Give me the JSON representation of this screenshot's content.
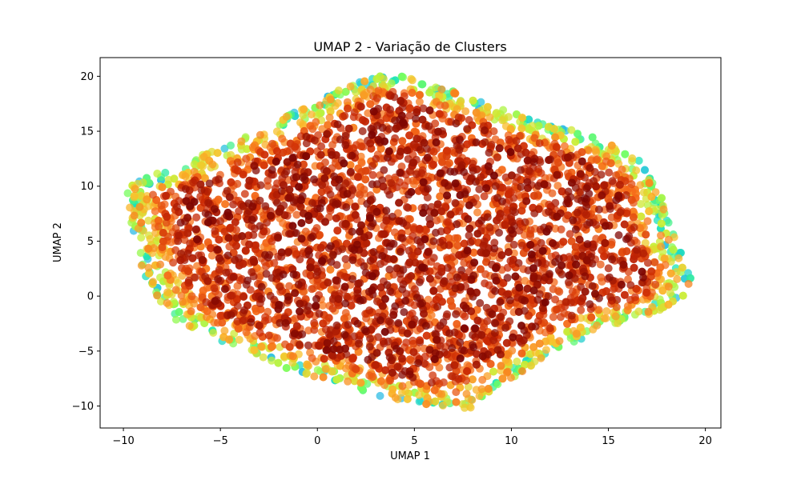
{
  "chart_data": {
    "type": "scatter",
    "title": "UMAP 2 - Variação de Clusters",
    "xlabel": "UMAP 1",
    "ylabel": "UMAP 2",
    "xlim": [
      -11.2,
      20.8
    ],
    "ylim": [
      -12.0,
      21.7
    ],
    "xticks": [
      -10,
      -5,
      0,
      5,
      10,
      15,
      20
    ],
    "yticks": [
      -10,
      -5,
      0,
      5,
      10,
      15,
      20
    ],
    "xtick_labels": [
      "−10",
      "−5",
      "0",
      "5",
      "10",
      "15",
      "20"
    ],
    "ytick_labels": [
      "−10",
      "−5",
      "0",
      "5",
      "10",
      "15",
      "20"
    ],
    "grid": false,
    "legend": "none",
    "colormap": "turbo",
    "colormap_stops": [
      "#30123b",
      "#4662d7",
      "#36aaf9",
      "#1ae4b6",
      "#72fe5e",
      "#c7ef34",
      "#fabf2c",
      "#f66b19",
      "#cb2a04",
      "#7a0403"
    ],
    "point_alpha": 0.75,
    "hull": [
      [
        -10.0,
        9.8
      ],
      [
        -7.5,
        11.8
      ],
      [
        -5.0,
        13.5
      ],
      [
        -2.0,
        16.0
      ],
      [
        0.0,
        17.8
      ],
      [
        2.0,
        19.5
      ],
      [
        3.8,
        20.3
      ],
      [
        5.5,
        19.6
      ],
      [
        8.0,
        18.0
      ],
      [
        10.5,
        16.4
      ],
      [
        13.0,
        15.2
      ],
      [
        15.0,
        14.0
      ],
      [
        16.5,
        12.5
      ],
      [
        17.6,
        10.5
      ],
      [
        18.0,
        7.5
      ],
      [
        18.6,
        4.5
      ],
      [
        19.3,
        2.0
      ],
      [
        19.0,
        0.0
      ],
      [
        17.5,
        -1.5
      ],
      [
        15.5,
        -2.5
      ],
      [
        13.5,
        -4.0
      ],
      [
        11.5,
        -6.0
      ],
      [
        9.5,
        -8.0
      ],
      [
        7.8,
        -10.3
      ],
      [
        5.5,
        -9.8
      ],
      [
        3.5,
        -9.3
      ],
      [
        1.0,
        -7.8
      ],
      [
        -1.0,
        -7.0
      ],
      [
        -3.0,
        -5.5
      ],
      [
        -5.0,
        -4.2
      ],
      [
        -7.5,
        -2.0
      ],
      [
        -8.5,
        0.5
      ],
      [
        -9.2,
        3.0
      ],
      [
        -9.5,
        6.0
      ]
    ],
    "num_points": 5200,
    "notes_points_generated_by_script": true
  }
}
